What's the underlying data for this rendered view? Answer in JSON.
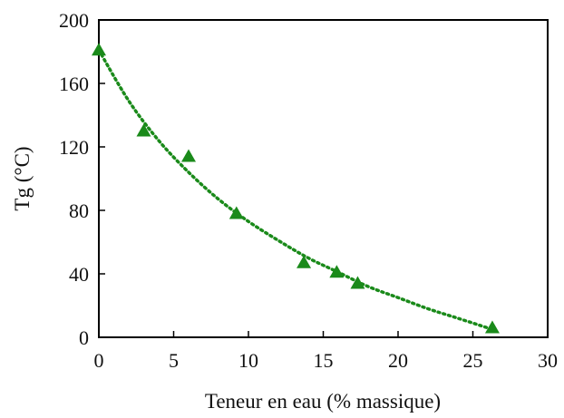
{
  "chart_data": {
    "type": "scatter",
    "title": "",
    "xlabel": "Teneur en eau (% massique)",
    "ylabel": "Tg (°C)",
    "xlim": [
      0,
      30
    ],
    "ylim": [
      0,
      200
    ],
    "x_ticks": [
      0,
      5,
      10,
      15,
      20,
      25,
      30
    ],
    "y_ticks": [
      0,
      40,
      80,
      120,
      160,
      200
    ],
    "grid": false,
    "legend": "none",
    "series": [
      {
        "marker": "triangle",
        "color": "#1a8a1a",
        "x": [
          0.0,
          3.0,
          6.0,
          9.2,
          13.7,
          15.9,
          17.3,
          26.3
        ],
        "y": [
          181,
          130,
          114,
          78,
          47,
          41,
          34,
          6
        ]
      }
    ],
    "trendline": {
      "style": "dotted",
      "color": "#1a8a1a",
      "x": [
        0,
        2,
        4,
        6,
        8,
        10,
        12,
        14,
        16,
        18,
        20,
        22,
        24,
        26.3
      ],
      "y": [
        181,
        149,
        124,
        104,
        87,
        73,
        61,
        50,
        41,
        32,
        25,
        18,
        12,
        5
      ]
    }
  }
}
